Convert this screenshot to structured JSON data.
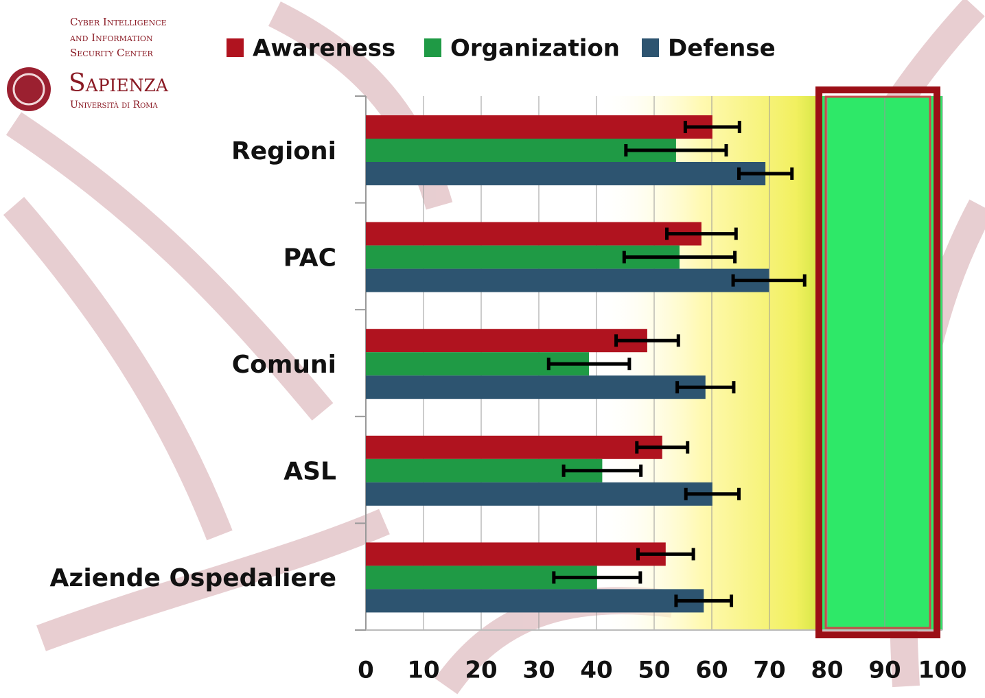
{
  "logo": {
    "lines": [
      "Cyber Intelligence",
      "and Information",
      "Security Center"
    ],
    "name": "Sapienza",
    "subtitle": "Università di Roma"
  },
  "chart_data": {
    "type": "hbar",
    "categories": [
      "Regioni",
      "PAC",
      "Comuni",
      "ASL",
      "Aziende Ospedaliere"
    ],
    "series": [
      {
        "name": "Awareness",
        "color": "#b0131f",
        "values": [
          60.1,
          58.2,
          48.8,
          51.4,
          52
        ],
        "errors": [
          4.7,
          6,
          5.4,
          4.4,
          4.8
        ]
      },
      {
        "name": "Organization",
        "color": "#1f9a45",
        "values": [
          53.8,
          54.4,
          38.7,
          41,
          40.1
        ],
        "errors": [
          8.7,
          9.6,
          7,
          6.7,
          7.5
        ]
      },
      {
        "name": "Defense",
        "color": "#2d5470",
        "values": [
          69.3,
          69.9,
          58.9,
          60.1,
          58.6
        ],
        "errors": [
          4.6,
          6.2,
          4.9,
          4.6,
          4.8
        ]
      }
    ],
    "xlim": [
      0,
      100
    ],
    "xticks": [
      0,
      10,
      20,
      30,
      40,
      50,
      60,
      70,
      80,
      90,
      100
    ],
    "grid": true
  }
}
